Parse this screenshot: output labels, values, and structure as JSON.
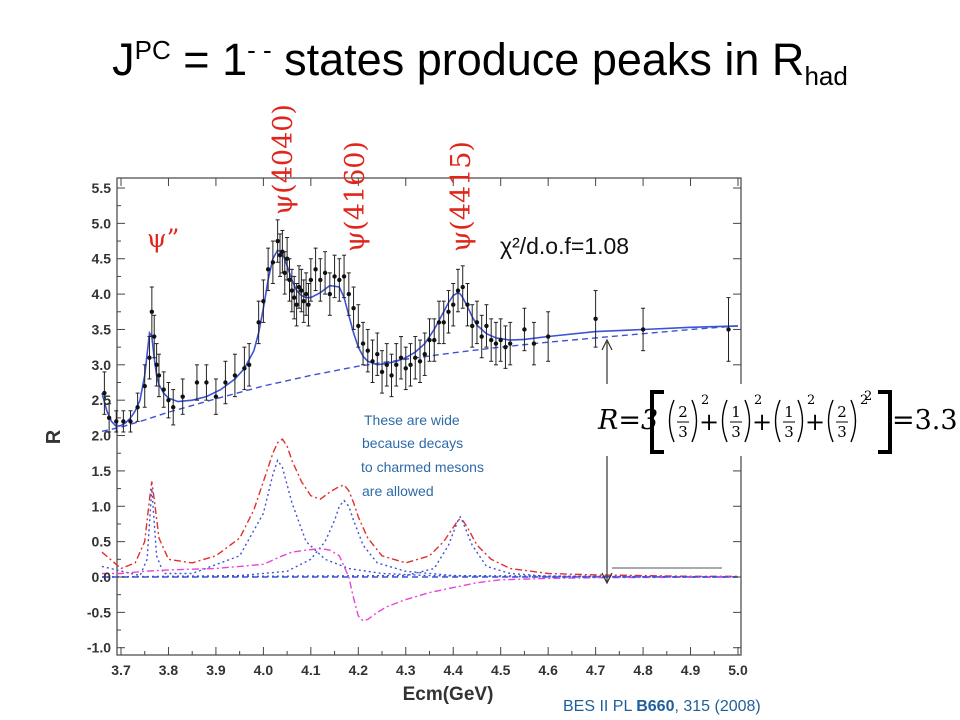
{
  "slide": {
    "title_main": "J",
    "title_sup": "PC",
    "title_mid": " = 1",
    "title_sup2": "- -",
    "title_rest": " states produce peaks in R",
    "title_sub": "had"
  },
  "labels": {
    "psi_double_prime": "ψ”",
    "psi_4040": "ψ(4040)",
    "psi_4160": "ψ(4160)",
    "psi_4415": "ψ(4415)",
    "chi2": "χ²/d.o.f=1.08",
    "note_lines": [
      "These are wide",
      "because decays",
      "to charmed mesons",
      "are allowed"
    ],
    "reference_prefix": "BES II PL ",
    "reference_bold": "B660",
    "reference_suffix": ", 315 (2008)",
    "equation": {
      "lhs": "R=3",
      "terms": [
        {
          "num": "2",
          "den": "3"
        },
        {
          "num": "1",
          "den": "3"
        },
        {
          "num": "1",
          "den": "3"
        },
        {
          "num": "2",
          "den": "3"
        }
      ],
      "exponent": "2",
      "result": "=3.3"
    }
  },
  "chart_data": {
    "type": "line",
    "xlabel": "Ecm(GeV)",
    "ylabel": "R",
    "xlim": [
      3.66,
      5.0
    ],
    "ylim": [
      -1.0,
      5.6
    ],
    "xticks": [
      "3.7",
      "3.8",
      "3.9",
      "4.0",
      "4.1",
      "4.2",
      "4.3",
      "4.4",
      "4.5",
      "4.6",
      "4.7",
      "4.8",
      "4.9",
      "5.0"
    ],
    "yticks": [
      "-1.0",
      "-0.5",
      "0.0",
      "0.5",
      "1.0",
      "1.5",
      "2.0",
      "2.5",
      "3.0",
      "3.5",
      "4.0",
      "4.5",
      "5.0",
      "5.5"
    ],
    "points": [
      {
        "x": 3.665,
        "y": 2.6,
        "e": 0.3
      },
      {
        "x": 3.675,
        "y": 2.25,
        "e": 0.2
      },
      {
        "x": 3.69,
        "y": 2.2,
        "e": 0.15
      },
      {
        "x": 3.705,
        "y": 2.2,
        "e": 0.15
      },
      {
        "x": 3.72,
        "y": 2.2,
        "e": 0.15
      },
      {
        "x": 3.735,
        "y": 2.4,
        "e": 0.2
      },
      {
        "x": 3.75,
        "y": 2.7,
        "e": 0.3
      },
      {
        "x": 3.76,
        "y": 3.1,
        "e": 0.3
      },
      {
        "x": 3.765,
        "y": 3.75,
        "e": 0.35
      },
      {
        "x": 3.77,
        "y": 3.4,
        "e": 0.3
      },
      {
        "x": 3.775,
        "y": 3.0,
        "e": 0.3
      },
      {
        "x": 3.78,
        "y": 2.85,
        "e": 0.3
      },
      {
        "x": 3.79,
        "y": 2.65,
        "e": 0.25
      },
      {
        "x": 3.8,
        "y": 2.5,
        "e": 0.25
      },
      {
        "x": 3.81,
        "y": 2.4,
        "e": 0.25
      },
      {
        "x": 3.83,
        "y": 2.55,
        "e": 0.25
      },
      {
        "x": 3.86,
        "y": 2.75,
        "e": 0.25
      },
      {
        "x": 3.88,
        "y": 2.75,
        "e": 0.25
      },
      {
        "x": 3.9,
        "y": 2.55,
        "e": 0.25
      },
      {
        "x": 3.92,
        "y": 2.75,
        "e": 0.3
      },
      {
        "x": 3.94,
        "y": 2.85,
        "e": 0.3
      },
      {
        "x": 3.96,
        "y": 2.95,
        "e": 0.3
      },
      {
        "x": 3.97,
        "y": 3.0,
        "e": 0.3
      },
      {
        "x": 3.99,
        "y": 3.6,
        "e": 0.3
      },
      {
        "x": 4.0,
        "y": 3.9,
        "e": 0.3
      },
      {
        "x": 4.01,
        "y": 4.35,
        "e": 0.3
      },
      {
        "x": 4.02,
        "y": 4.45,
        "e": 0.3
      },
      {
        "x": 4.03,
        "y": 4.75,
        "e": 0.3
      },
      {
        "x": 4.035,
        "y": 4.55,
        "e": 0.3
      },
      {
        "x": 4.04,
        "y": 4.6,
        "e": 0.3
      },
      {
        "x": 4.045,
        "y": 4.3,
        "e": 0.3
      },
      {
        "x": 4.05,
        "y": 4.5,
        "e": 0.3
      },
      {
        "x": 4.055,
        "y": 4.2,
        "e": 0.3
      },
      {
        "x": 4.06,
        "y": 4.05,
        "e": 0.3
      },
      {
        "x": 4.065,
        "y": 3.95,
        "e": 0.3
      },
      {
        "x": 4.07,
        "y": 3.85,
        "e": 0.3
      },
      {
        "x": 4.075,
        "y": 4.1,
        "e": 0.3
      },
      {
        "x": 4.08,
        "y": 4.05,
        "e": 0.3
      },
      {
        "x": 4.085,
        "y": 3.9,
        "e": 0.3
      },
      {
        "x": 4.09,
        "y": 4.0,
        "e": 0.3
      },
      {
        "x": 4.095,
        "y": 3.85,
        "e": 0.3
      },
      {
        "x": 4.1,
        "y": 4.2,
        "e": 0.3
      },
      {
        "x": 4.11,
        "y": 4.35,
        "e": 0.3
      },
      {
        "x": 4.12,
        "y": 4.2,
        "e": 0.3
      },
      {
        "x": 4.13,
        "y": 4.3,
        "e": 0.3
      },
      {
        "x": 4.14,
        "y": 4.0,
        "e": 0.3
      },
      {
        "x": 4.15,
        "y": 4.25,
        "e": 0.3
      },
      {
        "x": 4.16,
        "y": 4.2,
        "e": 0.3
      },
      {
        "x": 4.17,
        "y": 4.25,
        "e": 0.3
      },
      {
        "x": 4.18,
        "y": 4.0,
        "e": 0.3
      },
      {
        "x": 4.19,
        "y": 3.8,
        "e": 0.3
      },
      {
        "x": 4.2,
        "y": 3.55,
        "e": 0.3
      },
      {
        "x": 4.21,
        "y": 3.3,
        "e": 0.3
      },
      {
        "x": 4.22,
        "y": 3.2,
        "e": 0.3
      },
      {
        "x": 4.23,
        "y": 3.05,
        "e": 0.3
      },
      {
        "x": 4.24,
        "y": 3.15,
        "e": 0.3
      },
      {
        "x": 4.25,
        "y": 2.9,
        "e": 0.3
      },
      {
        "x": 4.26,
        "y": 3.0,
        "e": 0.3
      },
      {
        "x": 4.27,
        "y": 2.85,
        "e": 0.3
      },
      {
        "x": 4.28,
        "y": 3.0,
        "e": 0.3
      },
      {
        "x": 4.29,
        "y": 3.1,
        "e": 0.3
      },
      {
        "x": 4.3,
        "y": 2.95,
        "e": 0.3
      },
      {
        "x": 4.31,
        "y": 3.0,
        "e": 0.3
      },
      {
        "x": 4.32,
        "y": 3.1,
        "e": 0.3
      },
      {
        "x": 4.33,
        "y": 3.05,
        "e": 0.3
      },
      {
        "x": 4.34,
        "y": 3.15,
        "e": 0.3
      },
      {
        "x": 4.35,
        "y": 3.35,
        "e": 0.3
      },
      {
        "x": 4.36,
        "y": 3.35,
        "e": 0.3
      },
      {
        "x": 4.37,
        "y": 3.6,
        "e": 0.3
      },
      {
        "x": 4.38,
        "y": 3.6,
        "e": 0.3
      },
      {
        "x": 4.39,
        "y": 3.75,
        "e": 0.3
      },
      {
        "x": 4.4,
        "y": 3.85,
        "e": 0.3
      },
      {
        "x": 4.41,
        "y": 4.05,
        "e": 0.3
      },
      {
        "x": 4.42,
        "y": 4.1,
        "e": 0.3
      },
      {
        "x": 4.43,
        "y": 3.85,
        "e": 0.3
      },
      {
        "x": 4.44,
        "y": 3.55,
        "e": 0.3
      },
      {
        "x": 4.45,
        "y": 3.6,
        "e": 0.3
      },
      {
        "x": 4.46,
        "y": 3.4,
        "e": 0.3
      },
      {
        "x": 4.47,
        "y": 3.55,
        "e": 0.3
      },
      {
        "x": 4.48,
        "y": 3.35,
        "e": 0.3
      },
      {
        "x": 4.49,
        "y": 3.3,
        "e": 0.3
      },
      {
        "x": 4.5,
        "y": 3.35,
        "e": 0.3
      },
      {
        "x": 4.51,
        "y": 3.25,
        "e": 0.3
      },
      {
        "x": 4.52,
        "y": 3.3,
        "e": 0.3
      },
      {
        "x": 4.55,
        "y": 3.5,
        "e": 0.3
      },
      {
        "x": 4.57,
        "y": 3.3,
        "e": 0.3
      },
      {
        "x": 4.6,
        "y": 3.4,
        "e": 0.35
      },
      {
        "x": 4.7,
        "y": 3.65,
        "e": 0.4
      },
      {
        "x": 4.8,
        "y": 3.5,
        "e": 0.3
      },
      {
        "x": 4.98,
        "y": 3.5,
        "e": 0.45
      }
    ],
    "series": [
      {
        "name": "",
        "color": "#3d52d5",
        "style": "solid",
        "x": [
          3.66,
          3.67,
          3.68,
          3.69,
          3.7,
          3.71,
          3.72,
          3.73,
          3.74,
          3.75,
          3.755,
          3.76,
          3.765,
          3.77,
          3.775,
          3.78,
          3.79,
          3.8,
          3.82,
          3.85,
          3.88,
          3.91,
          3.94,
          3.96,
          3.98,
          3.99,
          4.0,
          4.01,
          4.02,
          4.03,
          4.04,
          4.05,
          4.06,
          4.07,
          4.08,
          4.09,
          4.1,
          4.12,
          4.14,
          4.16,
          4.17,
          4.18,
          4.19,
          4.2,
          4.21,
          4.22,
          4.24,
          4.26,
          4.28,
          4.3,
          4.32,
          4.34,
          4.36,
          4.38,
          4.39,
          4.4,
          4.41,
          4.415,
          4.42,
          4.43,
          4.44,
          4.45,
          4.47,
          4.49,
          4.52,
          4.55,
          4.6,
          4.7,
          4.8,
          4.9,
          5.0
        ],
        "y": [
          2.6,
          2.35,
          2.2,
          2.13,
          2.14,
          2.18,
          2.25,
          2.35,
          2.5,
          2.85,
          3.15,
          3.45,
          3.4,
          3.1,
          2.85,
          2.72,
          2.6,
          2.53,
          2.48,
          2.5,
          2.55,
          2.65,
          2.8,
          2.95,
          3.2,
          3.45,
          3.8,
          4.2,
          4.5,
          4.62,
          4.58,
          4.4,
          4.2,
          4.05,
          3.98,
          3.95,
          3.95,
          4.02,
          4.12,
          4.1,
          3.95,
          3.7,
          3.45,
          3.25,
          3.12,
          3.05,
          3.0,
          3.02,
          3.05,
          3.1,
          3.18,
          3.3,
          3.5,
          3.75,
          3.88,
          3.98,
          4.02,
          4.0,
          3.95,
          3.82,
          3.68,
          3.56,
          3.44,
          3.38,
          3.35,
          3.36,
          3.4,
          3.47,
          3.5,
          3.53,
          3.55
        ]
      },
      {
        "name": "",
        "color": "#3d52d5",
        "style": "dashed",
        "x": [
          3.66,
          3.7,
          3.75,
          3.8,
          3.9,
          4.0,
          4.1,
          4.2,
          4.3,
          4.4,
          4.5,
          4.6,
          4.7,
          4.8,
          4.9,
          5.0
        ],
        "y": [
          2.06,
          2.12,
          2.22,
          2.33,
          2.52,
          2.7,
          2.85,
          2.98,
          3.08,
          3.17,
          3.25,
          3.32,
          3.38,
          3.44,
          3.5,
          3.55
        ]
      },
      {
        "name": "",
        "color": "#e0302b",
        "style": "dashdot",
        "x": [
          3.66,
          3.7,
          3.73,
          3.75,
          3.76,
          3.765,
          3.77,
          3.78,
          3.8,
          3.85,
          3.9,
          3.95,
          3.98,
          4.0,
          4.02,
          4.03,
          4.04,
          4.05,
          4.06,
          4.08,
          4.1,
          4.12,
          4.14,
          4.16,
          4.17,
          4.18,
          4.19,
          4.2,
          4.22,
          4.25,
          4.3,
          4.35,
          4.38,
          4.4,
          4.41,
          4.415,
          4.42,
          4.43,
          4.45,
          4.48,
          4.52,
          4.6,
          4.7,
          4.8,
          4.9,
          5.0
        ],
        "y": [
          0.35,
          0.12,
          0.2,
          0.5,
          1.1,
          1.35,
          1.1,
          0.55,
          0.25,
          0.2,
          0.3,
          0.55,
          0.95,
          1.35,
          1.75,
          1.9,
          1.95,
          1.85,
          1.65,
          1.35,
          1.15,
          1.1,
          1.2,
          1.28,
          1.3,
          1.22,
          1.05,
          0.85,
          0.55,
          0.3,
          0.2,
          0.3,
          0.5,
          0.7,
          0.8,
          0.82,
          0.8,
          0.7,
          0.45,
          0.25,
          0.12,
          0.05,
          0.03,
          0.02,
          0.01,
          0.01
        ]
      },
      {
        "name": "",
        "color": "#3d52d5",
        "style": "dotted",
        "x": [
          3.66,
          3.74,
          3.755,
          3.765,
          3.775,
          3.79,
          3.85,
          3.95,
          4.0,
          4.02,
          4.03,
          4.04,
          4.06,
          4.09,
          4.13,
          4.18,
          4.25,
          4.35,
          4.45,
          4.6,
          5.0
        ],
        "y": [
          0.15,
          0.02,
          0.25,
          1.25,
          0.3,
          0.05,
          0.05,
          0.3,
          0.9,
          1.45,
          1.65,
          1.55,
          1.05,
          0.5,
          0.25,
          0.12,
          0.05,
          0.02,
          0.01,
          0.0,
          0.0
        ]
      },
      {
        "name": "",
        "color": "#3d52d5",
        "style": "dotted",
        "x": [
          3.66,
          3.95,
          4.05,
          4.1,
          4.13,
          4.15,
          4.16,
          4.17,
          4.18,
          4.19,
          4.21,
          4.24,
          4.3,
          4.4,
          5.0
        ],
        "y": [
          0.0,
          0.02,
          0.08,
          0.25,
          0.5,
          0.8,
          1.0,
          1.08,
          1.0,
          0.8,
          0.45,
          0.2,
          0.08,
          0.02,
          0.0
        ]
      },
      {
        "name": "",
        "color": "#3d52d5",
        "style": "dotted",
        "x": [
          3.66,
          4.3,
          4.36,
          4.39,
          4.41,
          4.415,
          4.42,
          4.44,
          4.47,
          4.52,
          4.6,
          5.0
        ],
        "y": [
          0.0,
          0.02,
          0.12,
          0.45,
          0.8,
          0.85,
          0.78,
          0.45,
          0.15,
          0.05,
          0.01,
          0.0
        ]
      },
      {
        "name": "",
        "color": "#e844d9",
        "style": "dashdot",
        "x": [
          3.66,
          3.7,
          3.75,
          3.8,
          3.9,
          3.95,
          4.0,
          4.04,
          4.06,
          4.09,
          4.12,
          4.14,
          4.16,
          4.18,
          4.19,
          4.2,
          4.21,
          4.22,
          4.24,
          4.26,
          4.3,
          4.35,
          4.4,
          4.45,
          4.5,
          4.6,
          4.7,
          5.0
        ],
        "y": [
          0.05,
          0.05,
          0.08,
          0.1,
          0.12,
          0.15,
          0.18,
          0.3,
          0.35,
          0.38,
          0.4,
          0.38,
          0.3,
          0.0,
          -0.3,
          -0.55,
          -0.62,
          -0.6,
          -0.5,
          -0.42,
          -0.32,
          -0.22,
          -0.15,
          -0.08,
          -0.04,
          -0.02,
          -0.01,
          0.0
        ]
      },
      {
        "name": "",
        "color": "#3d52d5",
        "style": "dashed",
        "x": [
          3.66,
          5.0
        ],
        "y": [
          0.0,
          0.0
        ]
      }
    ]
  }
}
